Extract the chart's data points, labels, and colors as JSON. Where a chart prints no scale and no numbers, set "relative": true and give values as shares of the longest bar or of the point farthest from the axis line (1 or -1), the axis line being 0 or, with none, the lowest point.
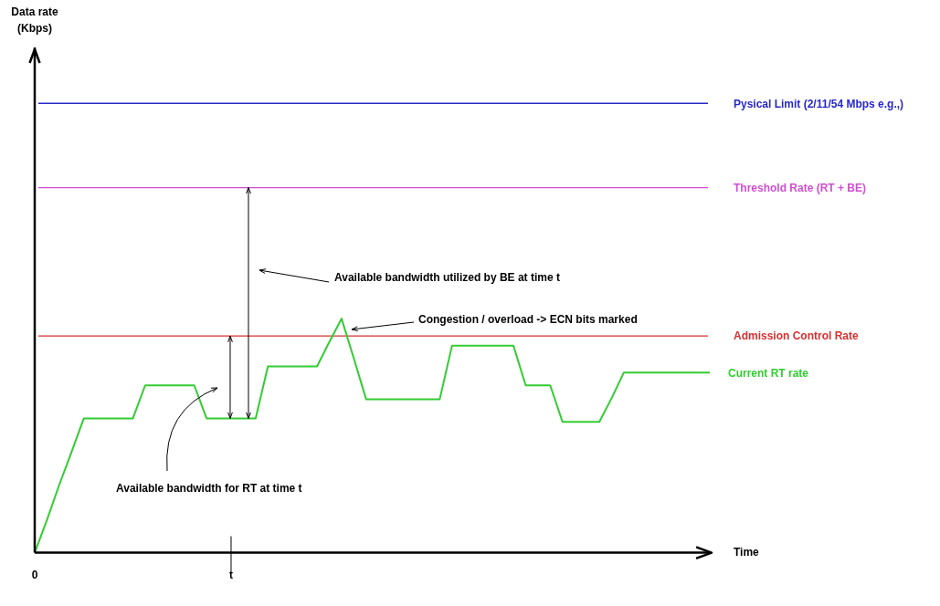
{
  "chart_data": {
    "type": "line",
    "relative": true,
    "xlabel": "Time",
    "categories": [
      "0",
      null,
      null,
      null,
      null,
      null,
      null,
      null,
      null,
      null,
      null,
      null,
      null,
      null,
      null,
      null,
      "t",
      null,
      null,
      null,
      null,
      null,
      null,
      null,
      null,
      null,
      null,
      null,
      null,
      null,
      null,
      null,
      null,
      null,
      null,
      null,
      null,
      null,
      null,
      null,
      null,
      null,
      null,
      null,
      null,
      null,
      null,
      null,
      null,
      null,
      null,
      null,
      null,
      null,
      null,
      null
    ],
    "tick_labels": "x",
    "grid": false,
    "legend": false,
    "marker": "none",
    "line_style": "solid",
    "series": [
      {
        "name": "Current RT rate",
        "color": "#33cc33",
        "values": [
          0,
          0.14,
          0.29,
          0.43,
          0.574,
          0.574,
          0.574,
          0.574,
          0.574,
          0.715,
          0.715,
          0.715,
          0.715,
          0.715,
          0.574,
          0.574,
          0.574,
          0.574,
          0.574,
          0.796,
          0.796,
          0.796,
          0.796,
          0.796,
          0.9,
          1,
          0.83,
          0.656,
          0.656,
          0.656,
          0.656,
          0.656,
          0.656,
          0.656,
          0.885,
          0.885,
          0.885,
          0.885,
          0.885,
          0.885,
          0.715,
          0.715,
          0.715,
          0.559,
          0.559,
          0.559,
          0.559,
          0.66,
          0.77,
          0.77,
          0.77,
          0.77,
          0.77,
          0.77,
          0.77,
          0.77
        ]
      }
    ],
    "ref_lines": [
      {
        "axis": "y",
        "value": 1.92,
        "label": "Pysical Limit (2/11/54 Mbps e.g.,)",
        "color": "#2828c8"
      },
      {
        "axis": "y",
        "value": 1.56,
        "label": "Threshold Rate (RT + BE)",
        "color": "#d050d0"
      },
      {
        "axis": "y",
        "value": 0.926,
        "label": "Admission Control Rate",
        "color": "#d83030"
      }
    ],
    "annotations": [
      "Available bandwidth utilized by BE at time t",
      "Congestion / overload -> ECN bits marked",
      "Available bandwidth for RT at time t",
      "Data rate\n(Kbps)"
    ]
  }
}
